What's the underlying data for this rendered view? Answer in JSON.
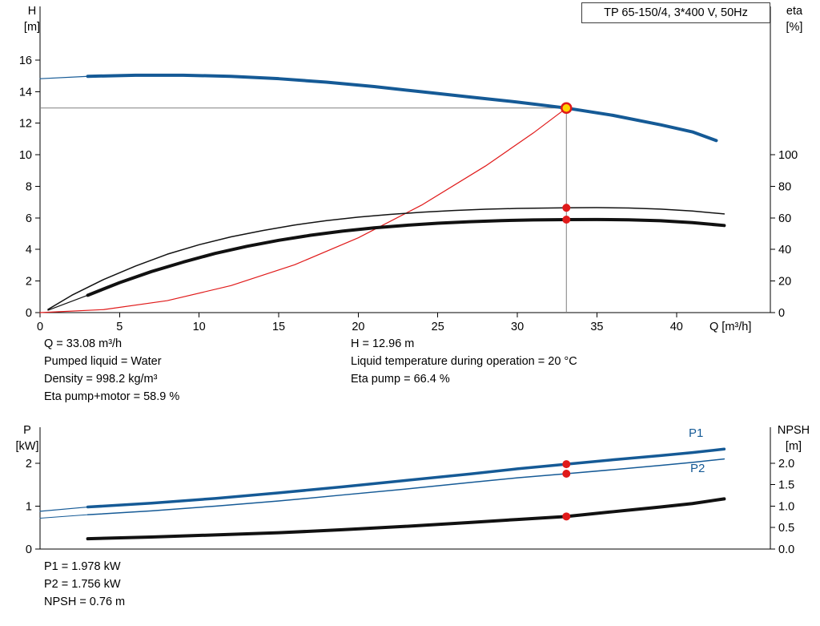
{
  "title_box": {
    "label": "TP 65-150/4, 3*400 V, 50Hz"
  },
  "operating_point_info": {
    "q": "Q = 33.08 m³/h",
    "pumped_liquid": "Pumped liquid = Water",
    "density": "Density = 998.2 kg/m³",
    "eta_pump_motor": "Eta pump+motor = 58.9 %",
    "h": "H = 12.96 m",
    "liquid_temperature": "Liquid temperature during operation = 20 °C",
    "eta_pump": "Eta pump = 66.4 %"
  },
  "power_info": {
    "p1": "P1 = 1.978 kW",
    "p2": "P2 = 1.756 kW",
    "npsh": "NPSH = 0.76 m"
  },
  "colors": {
    "curve_blue": "#155a96",
    "curve_black": "#111111",
    "system_red": "#e01a1a",
    "duty_yellow": "#ffd200",
    "crosshair_gray": "#808080"
  },
  "chart_data": [
    {
      "name": "hq-chart",
      "type": "line",
      "title": "TP 65-150/4, 3*400 V, 50Hz",
      "x_axis": {
        "label": "Q [m³/h]",
        "range": [
          0,
          45.9
        ],
        "ticks": [
          0,
          5,
          10,
          15,
          20,
          25,
          30,
          35,
          40
        ]
      },
      "y_left": {
        "label": "H",
        "unit": "[m]",
        "range": [
          0,
          19.4
        ],
        "ticks": [
          0,
          2,
          4,
          6,
          8,
          10,
          12,
          14,
          16
        ]
      },
      "y_right": {
        "label": "eta",
        "unit": "[%]",
        "range": [
          0,
          194
        ],
        "ticks": [
          0,
          20,
          40,
          60,
          80,
          100
        ]
      },
      "duty_lines": {
        "x": 33.08,
        "h": 12.96
      },
      "series": [
        {
          "name": "head-curve",
          "axis": "left",
          "color": "#155a96",
          "width": 4,
          "points": [
            [
              3,
              14.97
            ],
            [
              6,
              15.04
            ],
            [
              9,
              15.04
            ],
            [
              12,
              14.97
            ],
            [
              15,
              14.82
            ],
            [
              18,
              14.6
            ],
            [
              21,
              14.32
            ],
            [
              24,
              13.99
            ],
            [
              27,
              13.66
            ],
            [
              30,
              13.34
            ],
            [
              33.08,
              12.96
            ],
            [
              36,
              12.5
            ],
            [
              39,
              11.9
            ],
            [
              41,
              11.45
            ],
            [
              42.5,
              10.9
            ]
          ]
        },
        {
          "name": "head-curve-lead",
          "axis": "left",
          "color": "#155a96",
          "width": 1.2,
          "points": [
            [
              0,
              14.82
            ],
            [
              3,
              14.97
            ]
          ]
        },
        {
          "name": "system-curve",
          "axis": "left",
          "color": "#e01a1a",
          "width": 1.2,
          "points": [
            [
              0,
              0
            ],
            [
              4,
              0.19
            ],
            [
              8,
              0.76
            ],
            [
              12,
              1.71
            ],
            [
              16,
              3.03
            ],
            [
              20,
              4.74
            ],
            [
              24,
              6.82
            ],
            [
              28,
              9.29
            ],
            [
              31,
              11.38
            ],
            [
              33.08,
              12.96
            ]
          ]
        },
        {
          "name": "eta-pump",
          "axis": "right",
          "color": "#111111",
          "width": 1.5,
          "points": [
            [
              0.5,
              2
            ],
            [
              2,
              11
            ],
            [
              4,
              21
            ],
            [
              6,
              29.5
            ],
            [
              8,
              37
            ],
            [
              10,
              43
            ],
            [
              12,
              48
            ],
            [
              14,
              52
            ],
            [
              16,
              55.5
            ],
            [
              18,
              58.3
            ],
            [
              20,
              60.5
            ],
            [
              22,
              62.2
            ],
            [
              24,
              63.6
            ],
            [
              26,
              64.7
            ],
            [
              28,
              65.5
            ],
            [
              30,
              66
            ],
            [
              33.08,
              66.4
            ],
            [
              35,
              66.5
            ],
            [
              37,
              66.3
            ],
            [
              39,
              65.6
            ],
            [
              41,
              64.4
            ],
            [
              43,
              62.5
            ]
          ]
        },
        {
          "name": "eta-pump-motor",
          "axis": "right",
          "color": "#111111",
          "width": 4,
          "points": [
            [
              3,
              11
            ],
            [
              5,
              19
            ],
            [
              7,
              26
            ],
            [
              9,
              32
            ],
            [
              11,
              37.5
            ],
            [
              13,
              42
            ],
            [
              15,
              45.8
            ],
            [
              17,
              49
            ],
            [
              19,
              51.6
            ],
            [
              21,
              53.7
            ],
            [
              23,
              55.3
            ],
            [
              25,
              56.6
            ],
            [
              27,
              57.6
            ],
            [
              29,
              58.3
            ],
            [
              31,
              58.7
            ],
            [
              33.08,
              58.9
            ],
            [
              35,
              59
            ],
            [
              37,
              58.8
            ],
            [
              39,
              58.2
            ],
            [
              41,
              57
            ],
            [
              43,
              55.2
            ]
          ]
        },
        {
          "name": "eta-pump-motor-lead",
          "axis": "right",
          "color": "#111111",
          "width": 1.2,
          "points": [
            [
              0.5,
              1.5
            ],
            [
              3,
              11
            ]
          ]
        }
      ],
      "markers": [
        {
          "name": "duty-point",
          "style": "duty",
          "axis": "left",
          "x": 33.08,
          "y": 12.96,
          "fill": "#ffd200",
          "stroke": "#e01a1a"
        },
        {
          "name": "eta-pump-point",
          "style": "dot",
          "axis": "right",
          "x": 33.08,
          "y": 66.4,
          "fill": "#e01a1a"
        },
        {
          "name": "eta-pump-motor-point",
          "style": "dot",
          "axis": "right",
          "x": 33.08,
          "y": 58.9,
          "fill": "#e01a1a"
        }
      ]
    },
    {
      "name": "power-npsh-chart",
      "type": "line",
      "x_axis": {
        "label": "",
        "range": [
          0,
          45.9
        ],
        "ticks": []
      },
      "y_left": {
        "label": "P",
        "unit": "[kW]",
        "range": [
          0,
          2.84
        ],
        "ticks": [
          0,
          1,
          2
        ]
      },
      "y_right": {
        "label": "NPSH",
        "unit": "[m]",
        "range": [
          0,
          2.84
        ],
        "ticks": [
          0,
          0.5,
          1,
          1.5,
          2
        ],
        "tick_labels": [
          "0.0",
          "0.5",
          "1.0",
          "1.5",
          "2.0"
        ]
      },
      "series": [
        {
          "name": "P1",
          "axis": "left",
          "color": "#155a96",
          "width": 3.5,
          "points": [
            [
              3,
              0.98
            ],
            [
              7,
              1.07
            ],
            [
              11,
              1.18
            ],
            [
              15,
              1.31
            ],
            [
              19,
              1.45
            ],
            [
              23,
              1.6
            ],
            [
              27,
              1.75
            ],
            [
              30,
              1.87
            ],
            [
              33.08,
              1.978
            ],
            [
              36,
              2.08
            ],
            [
              39,
              2.18
            ],
            [
              41,
              2.25
            ],
            [
              43,
              2.33
            ]
          ]
        },
        {
          "name": "P1-lead",
          "axis": "left",
          "color": "#155a96",
          "width": 1.2,
          "points": [
            [
              0,
              0.88
            ],
            [
              3,
              0.98
            ]
          ]
        },
        {
          "name": "P2",
          "axis": "left",
          "color": "#155a96",
          "width": 1.5,
          "points": [
            [
              3,
              0.8
            ],
            [
              7,
              0.89
            ],
            [
              11,
              1.0
            ],
            [
              15,
              1.12
            ],
            [
              19,
              1.26
            ],
            [
              23,
              1.4
            ],
            [
              27,
              1.55
            ],
            [
              30,
              1.66
            ],
            [
              33.08,
              1.756
            ],
            [
              36,
              1.85
            ],
            [
              39,
              1.95
            ],
            [
              41,
              2.02
            ],
            [
              43,
              2.1
            ]
          ]
        },
        {
          "name": "P2-lead",
          "axis": "left",
          "color": "#155a96",
          "width": 1,
          "points": [
            [
              0,
              0.72
            ],
            [
              3,
              0.8
            ]
          ]
        },
        {
          "name": "NPSH",
          "axis": "right",
          "color": "#111111",
          "width": 4,
          "points": [
            [
              3,
              0.24
            ],
            [
              7,
              0.28
            ],
            [
              11,
              0.33
            ],
            [
              15,
              0.38
            ],
            [
              19,
              0.45
            ],
            [
              23,
              0.53
            ],
            [
              27,
              0.62
            ],
            [
              30,
              0.69
            ],
            [
              33.08,
              0.76
            ],
            [
              36,
              0.87
            ],
            [
              39,
              0.98
            ],
            [
              41,
              1.06
            ],
            [
              43,
              1.17
            ]
          ]
        }
      ],
      "markers": [
        {
          "name": "p1-point",
          "style": "dot",
          "axis": "left",
          "x": 33.08,
          "y": 1.978,
          "fill": "#e01a1a"
        },
        {
          "name": "p2-point",
          "style": "dot",
          "axis": "left",
          "x": 33.08,
          "y": 1.756,
          "fill": "#e01a1a"
        },
        {
          "name": "npsh-point",
          "style": "dot",
          "axis": "right",
          "x": 33.08,
          "y": 0.76,
          "fill": "#e01a1a"
        }
      ],
      "series_labels": [
        {
          "text": "P1",
          "color": "#155a96"
        },
        {
          "text": "P2",
          "color": "#155a96"
        }
      ]
    }
  ]
}
